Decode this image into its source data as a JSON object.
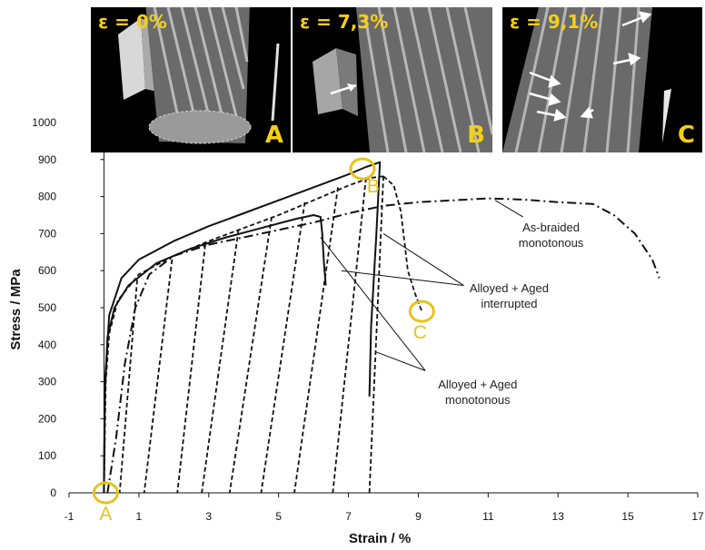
{
  "chart_data": {
    "type": "line",
    "xlabel": "Strain / %",
    "ylabel": "Stress / MPa",
    "xlim": [
      -1,
      17
    ],
    "ylim": [
      0,
      1000
    ],
    "xticks": [
      -1,
      1,
      3,
      5,
      7,
      9,
      11,
      13,
      15,
      17
    ],
    "yticks": [
      0,
      100,
      200,
      300,
      400,
      500,
      600,
      700,
      800,
      900,
      1000
    ],
    "grid": false,
    "series": [
      {
        "name": "As-braided monotonous",
        "style": "dash-dot",
        "points": [
          [
            0.1,
            0
          ],
          [
            0.35,
            150
          ],
          [
            0.6,
            350
          ],
          [
            0.9,
            500
          ],
          [
            1.3,
            590
          ],
          [
            2,
            640
          ],
          [
            3,
            670
          ],
          [
            4,
            690
          ],
          [
            5,
            710
          ],
          [
            6,
            730
          ],
          [
            7,
            755
          ],
          [
            8,
            775
          ],
          [
            9,
            785
          ],
          [
            10,
            790
          ],
          [
            11,
            795
          ],
          [
            12,
            792
          ],
          [
            13,
            785
          ],
          [
            14,
            780
          ],
          [
            14.6,
            750
          ],
          [
            15.2,
            700
          ],
          [
            15.7,
            630
          ],
          [
            15.9,
            580
          ]
        ]
      },
      {
        "name": "Alloyed + Aged interrupted",
        "style": "dashed",
        "loading_envelope": [
          [
            0,
            0
          ],
          [
            0.05,
            300
          ],
          [
            0.15,
            430
          ],
          [
            0.4,
            520
          ],
          [
            1,
            590
          ],
          [
            2,
            640
          ],
          [
            3,
            680
          ],
          [
            4,
            715
          ],
          [
            5,
            750
          ],
          [
            6,
            790
          ],
          [
            7,
            830
          ],
          [
            7.6,
            850
          ],
          [
            8,
            855
          ]
        ],
        "unload_reload_cycles": [
          {
            "peak": [
              0.95,
              575
            ],
            "unload_strain": 0.45
          },
          {
            "peak": [
              1.95,
              630
            ],
            "unload_strain": 1.15
          },
          {
            "peak": [
              2.9,
              670
            ],
            "unload_strain": 2.1
          },
          {
            "peak": [
              3.85,
              710
            ],
            "unload_strain": 2.8
          },
          {
            "peak": [
              4.8,
              745
            ],
            "unload_strain": 3.6
          },
          {
            "peak": [
              5.75,
              785
            ],
            "unload_strain": 4.5
          },
          {
            "peak": [
              6.7,
              825
            ],
            "unload_strain": 5.45
          },
          {
            "peak": [
              7.5,
              850
            ],
            "unload_strain": 6.55
          },
          {
            "peak": [
              8.0,
              855
            ],
            "unload_strain": 7.6
          }
        ],
        "final_drop": [
          [
            8.0,
            855
          ],
          [
            8.3,
            830
          ],
          [
            8.5,
            760
          ],
          [
            8.6,
            680
          ],
          [
            8.7,
            600
          ],
          [
            8.9,
            540
          ],
          [
            9.1,
            490
          ]
        ]
      },
      {
        "name": "Alloyed + Aged monotonous",
        "style": "solid",
        "curves": [
          [
            [
              0,
              0
            ],
            [
              0.02,
              250
            ],
            [
              0.1,
              420
            ],
            [
              0.3,
              500
            ],
            [
              0.7,
              560
            ],
            [
              1.5,
              620
            ],
            [
              2.5,
              660
            ],
            [
              3.5,
              690
            ],
            [
              4.5,
              715
            ],
            [
              5.5,
              740
            ],
            [
              6,
              750
            ],
            [
              6.2,
              745
            ],
            [
              6.25,
              700
            ],
            [
              6.3,
              620
            ],
            [
              6.35,
              560
            ]
          ],
          [
            [
              0,
              0
            ],
            [
              0.03,
              300
            ],
            [
              0.15,
              480
            ],
            [
              0.5,
              580
            ],
            [
              1,
              630
            ],
            [
              2,
              680
            ],
            [
              3,
              720
            ],
            [
              4,
              755
            ],
            [
              5,
              790
            ],
            [
              6,
              825
            ],
            [
              7,
              860
            ],
            [
              7.5,
              880
            ],
            [
              7.9,
              893
            ],
            [
              7.8,
              700
            ],
            [
              7.65,
              450
            ],
            [
              7.6,
              260
            ]
          ]
        ]
      }
    ],
    "annotations": [
      {
        "text_lines": [
          "As-braided",
          "monotonous"
        ]
      },
      {
        "text_lines": [
          "Alloyed + Aged",
          "interrupted"
        ]
      },
      {
        "text_lines": [
          "Alloyed + Aged",
          "monotonous"
        ]
      }
    ],
    "markers": [
      {
        "label": "A",
        "x": 0.05,
        "y": 0,
        "color": "#e8c21c"
      },
      {
        "label": "B",
        "x": 7.4,
        "y": 875,
        "color": "#e8c21c"
      },
      {
        "label": "C",
        "x": 9.1,
        "y": 490,
        "color": "#e8c21c"
      }
    ]
  },
  "insets": [
    {
      "strain_label": "ε = 0%",
      "tag": "A"
    },
    {
      "strain_label": "ε = 7,3%",
      "tag": "B"
    },
    {
      "strain_label": "ε = 9,1%",
      "tag": "C"
    }
  ],
  "colors": {
    "marker": "#e8c21c",
    "line": "#111111",
    "panel_bg": "#000000"
  }
}
